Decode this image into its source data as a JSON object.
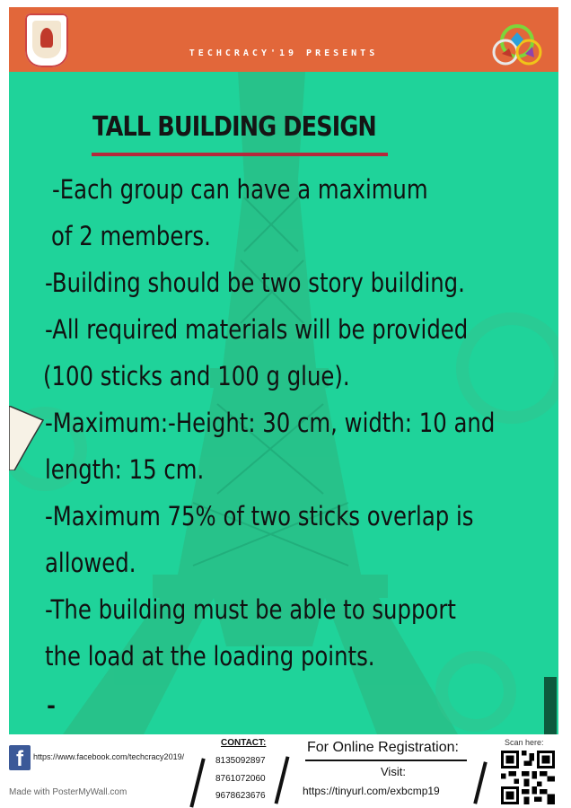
{
  "header": {
    "presents": "TECHCRACY'19 PRESENTS",
    "bg_color": "#e2673a",
    "left_logo_icon": "college-crest-icon",
    "right_logo_icon": "techcracy-logo-icon"
  },
  "main": {
    "bg_color": "#1fd39a",
    "background_icon": "eiffel-tower-icon",
    "title": "TALL BUILDING DESIGN",
    "title_underline_color": "#b5283b",
    "rules": [
      "-Each group can have a maximum",
      "of 2 members.",
      "-Building should be two story building.",
      "-All required materials will be provided",
      "(100 sticks and  100 g glue).",
      "-Maximum:-Height: 30 cm, width: 10 and",
      "length: 15 cm.",
      "-Maximum 75% of two sticks overlap is",
      "allowed.",
      "-The building  must be able to support",
      "the load at the loading points."
    ],
    "trailing_dash": "-"
  },
  "footer": {
    "facebook_icon": "facebook-icon",
    "facebook_url": "https://www.facebook.com/techcracy2019/",
    "made_with": "Made with PosterMyWall.com",
    "contact_title": "CONTACT:",
    "phones": [
      "8135092897",
      "8761072060",
      "9678623676"
    ],
    "registration_title": "For Online Registration:",
    "visit": "Visit:",
    "registration_url": "https://tinyurl.com/exbcmp19",
    "scan_here": "Scan here:",
    "qr_icon": "qr-code-icon"
  }
}
